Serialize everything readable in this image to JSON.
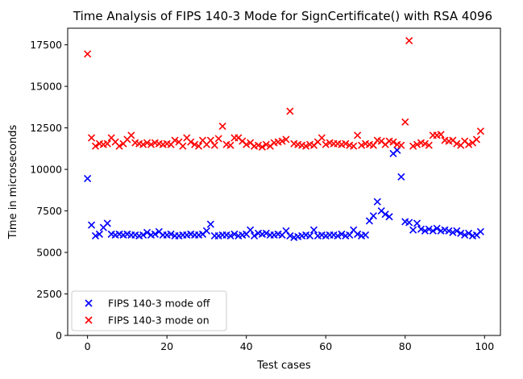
{
  "chart_data": {
    "type": "scatter",
    "title": "Time Analysis of FIPS 140-3 Mode for SignCertificate() with RSA 4096",
    "xlabel": "Test cases",
    "ylabel": "Time in microseconds",
    "xlim": [
      -5,
      104
    ],
    "ylim": [
      0,
      18500
    ],
    "xticks": [
      0,
      20,
      40,
      60,
      80,
      100
    ],
    "yticks": [
      0,
      2500,
      5000,
      7500,
      10000,
      12500,
      15000,
      17500
    ],
    "grid": false,
    "legend": "lower-left",
    "marker": "x",
    "x": [
      0,
      1,
      2,
      3,
      4,
      5,
      6,
      7,
      8,
      9,
      10,
      11,
      12,
      13,
      14,
      15,
      16,
      17,
      18,
      19,
      20,
      21,
      22,
      23,
      24,
      25,
      26,
      27,
      28,
      29,
      30,
      31,
      32,
      33,
      34,
      35,
      36,
      37,
      38,
      39,
      40,
      41,
      42,
      43,
      44,
      45,
      46,
      47,
      48,
      49,
      50,
      51,
      52,
      53,
      54,
      55,
      56,
      57,
      58,
      59,
      60,
      61,
      62,
      63,
      64,
      65,
      66,
      67,
      68,
      69,
      70,
      71,
      72,
      73,
      74,
      75,
      76,
      77,
      78,
      79,
      80,
      81,
      82,
      83,
      84,
      85,
      86,
      87,
      88,
      89,
      90,
      91,
      92,
      93,
      94,
      95,
      96,
      97,
      98,
      99
    ],
    "series": [
      {
        "name": "FIPS 140-3 mode off",
        "color": "#0000ff",
        "values": [
          9450,
          6650,
          6000,
          6100,
          6500,
          6750,
          6100,
          6050,
          6100,
          6050,
          6100,
          6050,
          6050,
          6000,
          6050,
          6200,
          6050,
          6100,
          6250,
          6050,
          6050,
          6100,
          6000,
          6000,
          6050,
          6050,
          6100,
          6050,
          6050,
          6100,
          6300,
          6700,
          6000,
          6000,
          6050,
          6050,
          6000,
          6100,
          6000,
          6050,
          6100,
          6350,
          6000,
          6150,
          6100,
          6150,
          6050,
          6050,
          6100,
          6050,
          6300,
          6000,
          5900,
          5950,
          6000,
          6050,
          6000,
          6350,
          6000,
          6050,
          6000,
          6050,
          6050,
          6000,
          6100,
          6000,
          6050,
          6350,
          6100,
          6000,
          6050,
          6900,
          7200,
          8050,
          7500,
          7300,
          7150,
          10950,
          11150,
          9550,
          6850,
          6800,
          6350,
          6750,
          6400,
          6300,
          6400,
          6300,
          6450,
          6300,
          6350,
          6300,
          6200,
          6300,
          6150,
          6050,
          6150,
          6000,
          6050,
          6250
        ]
      },
      {
        "name": "FIPS 140-3 mode on",
        "color": "#ff0000",
        "values": [
          16950,
          11900,
          11400,
          11550,
          11500,
          11550,
          11900,
          11650,
          11400,
          11550,
          11800,
          12050,
          11600,
          11550,
          11500,
          11600,
          11500,
          11600,
          11550,
          11500,
          11550,
          11500,
          11750,
          11650,
          11400,
          11900,
          11650,
          11500,
          11400,
          11750,
          11500,
          11750,
          11450,
          11850,
          12600,
          11500,
          11450,
          11900,
          11900,
          11700,
          11500,
          11600,
          11400,
          11450,
          11350,
          11500,
          11400,
          11600,
          11650,
          11700,
          11800,
          13500,
          11550,
          11500,
          11450,
          11400,
          11500,
          11450,
          11650,
          11900,
          11500,
          11600,
          11550,
          11550,
          11500,
          11550,
          11450,
          11400,
          12050,
          11450,
          11550,
          11500,
          11450,
          11750,
          11700,
          11500,
          11700,
          11650,
          11500,
          11450,
          12850,
          17750,
          11400,
          11500,
          11600,
          11550,
          11450,
          12050,
          12050,
          12100,
          11750,
          11700,
          11750,
          11550,
          11450,
          11700,
          11500,
          11600,
          11800,
          12300
        ]
      }
    ]
  }
}
